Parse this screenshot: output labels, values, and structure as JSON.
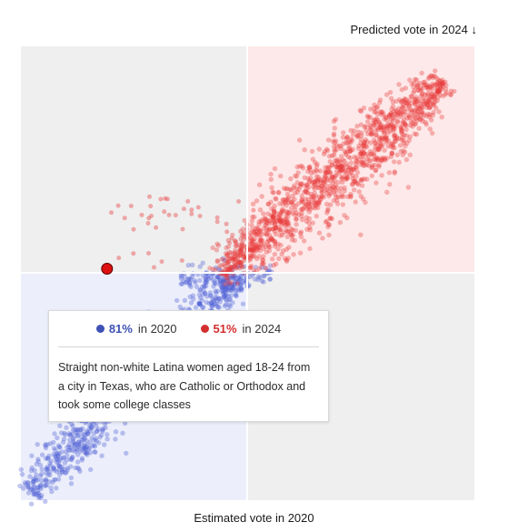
{
  "axes": {
    "top_label": "Predicted vote in 2024 ↓",
    "bottom_label": "Estimated vote in 2020"
  },
  "tooltip": {
    "stat_2020": {
      "percent": "81%",
      "label": "in 2020",
      "color": "#3f51b5"
    },
    "stat_2024": {
      "percent": "51%",
      "label": "in 2024",
      "color": "#d32f2f"
    },
    "description": "Straight non-white Latina women aged 18-24 from a city in Texas, who are Catholic or Orthodox and took some college classes"
  },
  "colors": {
    "democratic": "#4c5fd5",
    "republican": "#e8393a",
    "highlight": "#dd1111",
    "quadrant_blue": "#eceffb",
    "quadrant_red": "#fde9e9",
    "quadrant_gray": "#efefef"
  },
  "chart_data": {
    "type": "scatter",
    "x_label": "Estimated vote in 2020",
    "y_label": "Predicted vote in 2024",
    "x_range": [
      0,
      1
    ],
    "y_range": [
      0,
      1
    ],
    "midlines": {
      "x": 0.5,
      "y": 0.5
    },
    "series": [
      {
        "color": "democratic",
        "trend": [
          [
            0.0,
            0.0
          ],
          [
            0.5,
            0.5
          ]
        ]
      },
      {
        "color": "republican",
        "trend": [
          [
            0.42,
            0.5
          ],
          [
            0.93,
            0.92
          ]
        ]
      }
    ],
    "highlight": {
      "x_2020": 0.19,
      "y_2024": 0.51
    },
    "grid": false,
    "legend": "none"
  }
}
